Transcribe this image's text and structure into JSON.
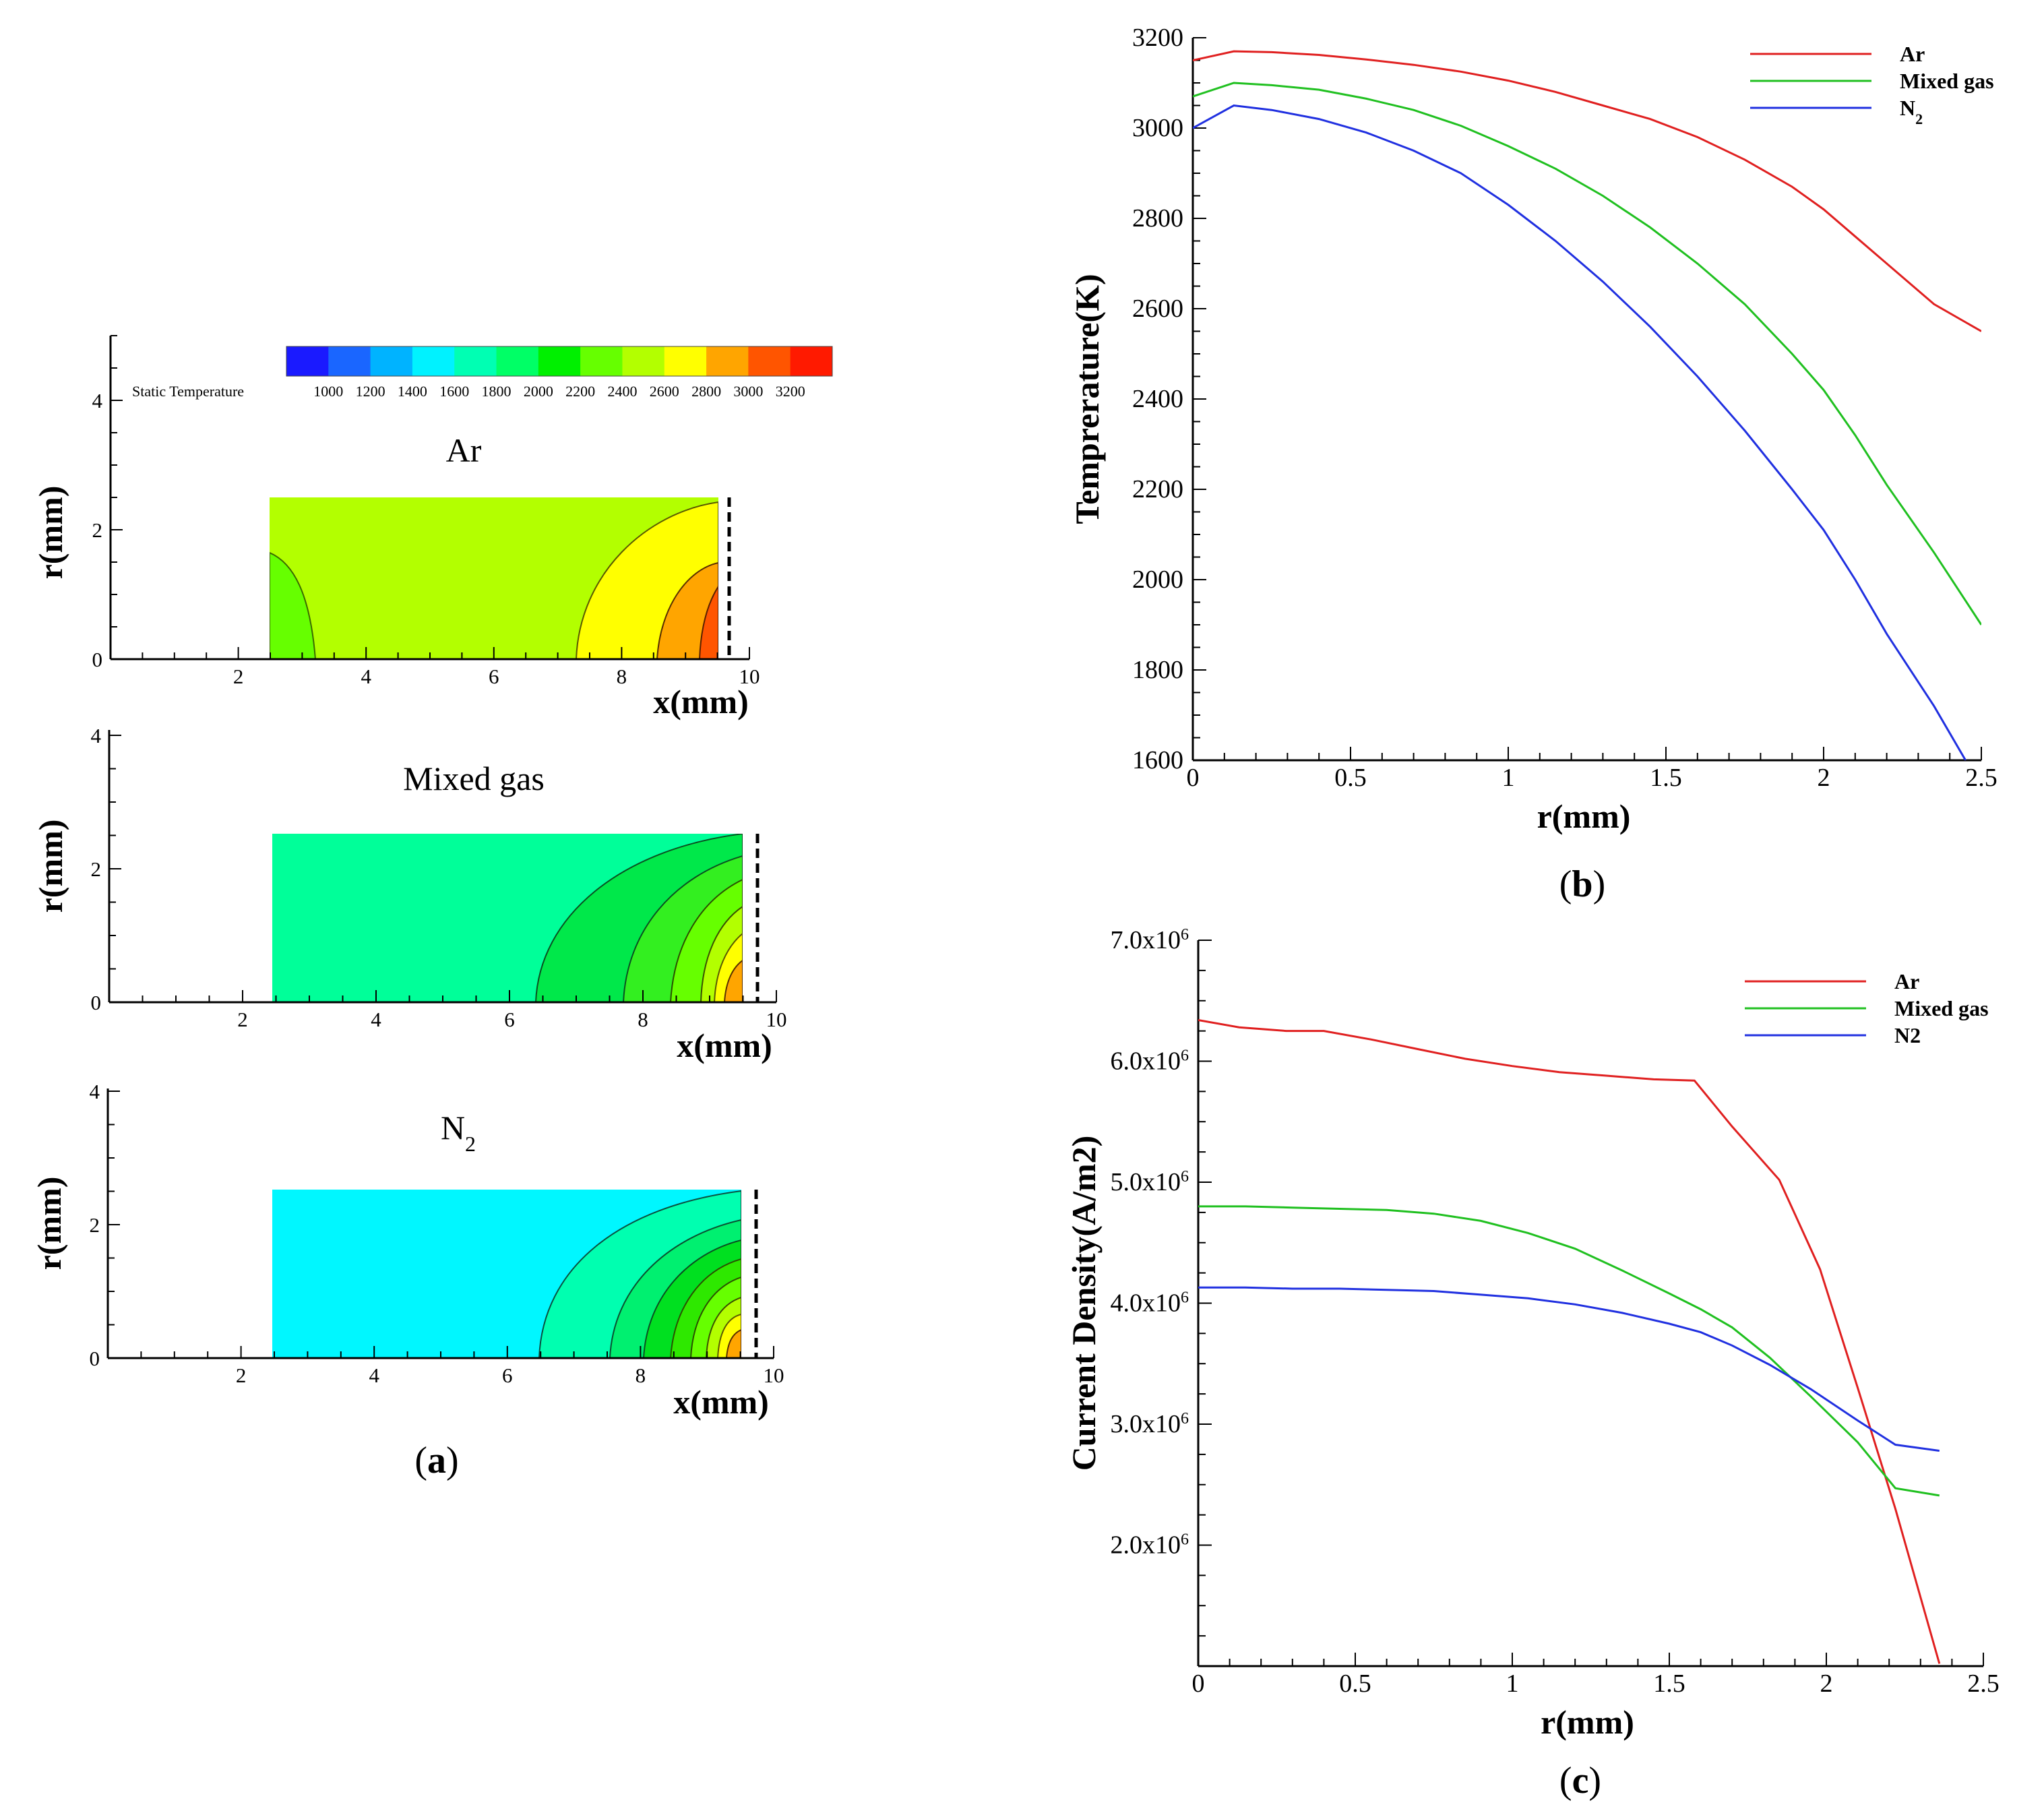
{
  "panel_a": {
    "caption": "a",
    "colorbar": {
      "label": "Static Temperature",
      "ticks": [
        "1000",
        "1200",
        "1400",
        "1600",
        "1800",
        "2000",
        "2200",
        "2400",
        "2600",
        "2800",
        "3000",
        "3200"
      ],
      "colors": [
        "#1a1aff",
        "#1a66ff",
        "#00b3ff",
        "#00f2ff",
        "#00ffb3",
        "#00ff66",
        "#00f000",
        "#66ff00",
        "#b3ff00",
        "#ffff00",
        "#ffa500",
        "#ff5500",
        "#ff1a00"
      ]
    },
    "plots": [
      {
        "title": "Ar",
        "subscript": "",
        "ylabel": "r(mm)",
        "xlabel": "x(mm)",
        "xticks": [
          "2",
          "4",
          "6",
          "8",
          "10"
        ],
        "yticks": [
          "0",
          "2",
          "4"
        ],
        "ylim": [
          0,
          5
        ],
        "xlim": [
          0,
          10
        ],
        "background": "Ar-field"
      },
      {
        "title": "Mixed gas",
        "subscript": "",
        "ylabel": "r(mm)",
        "xlabel": "x(mm)",
        "xticks": [
          "2",
          "4",
          "6",
          "8",
          "10"
        ],
        "yticks": [
          "0",
          "2",
          "4"
        ],
        "ylim": [
          0,
          4.2
        ],
        "xlim": [
          0,
          10
        ],
        "background": "Mixed-field"
      },
      {
        "title": "N",
        "subscript": "2",
        "ylabel": "r(mm)",
        "xlabel": "x(mm)",
        "xticks": [
          "2",
          "4",
          "6",
          "8",
          "10"
        ],
        "yticks": [
          "0",
          "2",
          "4"
        ],
        "ylim": [
          0,
          4.2
        ],
        "xlim": [
          0,
          10
        ],
        "background": "N2-field"
      }
    ]
  },
  "chart_data": [
    {
      "panel": "b",
      "type": "line",
      "title": "",
      "xlabel": "r(mm)",
      "ylabel": "Temprerature(K)",
      "xlim": [
        0,
        2.5
      ],
      "ylim": [
        1600,
        3200
      ],
      "xticks": [
        "0",
        "0.5",
        "1",
        "1.5",
        "2",
        "2.5"
      ],
      "yticks": [
        "1600",
        "1800",
        "2000",
        "2200",
        "2400",
        "2600",
        "2800",
        "3000",
        "3200"
      ],
      "legend_position": "top-right",
      "series": [
        {
          "name": "Ar",
          "subscript": "",
          "color": "#e02020",
          "x": [
            0,
            0.13,
            0.25,
            0.4,
            0.55,
            0.7,
            0.85,
            1.0,
            1.15,
            1.3,
            1.45,
            1.6,
            1.75,
            1.9,
            2.0,
            2.1,
            2.2,
            2.35,
            2.5
          ],
          "y": [
            3150,
            3170,
            3168,
            3162,
            3152,
            3140,
            3125,
            3105,
            3080,
            3050,
            3020,
            2980,
            2930,
            2870,
            2820,
            2760,
            2700,
            2610,
            2550
          ]
        },
        {
          "name": "Mixed gas",
          "subscript": "",
          "color": "#20c020",
          "x": [
            0,
            0.13,
            0.25,
            0.4,
            0.55,
            0.7,
            0.85,
            1.0,
            1.15,
            1.3,
            1.45,
            1.6,
            1.75,
            1.9,
            2.0,
            2.1,
            2.2,
            2.35,
            2.5
          ],
          "y": [
            3070,
            3100,
            3095,
            3085,
            3065,
            3040,
            3005,
            2960,
            2910,
            2850,
            2780,
            2700,
            2610,
            2500,
            2420,
            2320,
            2210,
            2060,
            1900
          ]
        },
        {
          "name": "N",
          "subscript": "2",
          "color": "#2030e0",
          "x": [
            0,
            0.13,
            0.25,
            0.4,
            0.55,
            0.7,
            0.85,
            1.0,
            1.15,
            1.3,
            1.45,
            1.6,
            1.75,
            1.9,
            2.0,
            2.1,
            2.2,
            2.35,
            2.45
          ],
          "y": [
            3000,
            3050,
            3040,
            3020,
            2990,
            2950,
            2900,
            2830,
            2750,
            2660,
            2560,
            2450,
            2330,
            2200,
            2110,
            2000,
            1880,
            1720,
            1600
          ]
        }
      ]
    },
    {
      "panel": "c",
      "type": "line",
      "title": "",
      "xlabel": "r(mm)",
      "ylabel": "Current Density(A/m2)",
      "xlim": [
        0,
        2.5
      ],
      "ylim": [
        1000000,
        7000000
      ],
      "xticks": [
        "0",
        "0.5",
        "1",
        "1.5",
        "2",
        "2.5"
      ],
      "yticks": [
        {
          "value": 2000000,
          "mant": "2.0x10",
          "exp": "6"
        },
        {
          "value": 3000000,
          "mant": "3.0x10",
          "exp": "6"
        },
        {
          "value": 4000000,
          "mant": "4.0x10",
          "exp": "6"
        },
        {
          "value": 5000000,
          "mant": "5.0x10",
          "exp": "6"
        },
        {
          "value": 6000000,
          "mant": "6.0x10",
          "exp": "6"
        },
        {
          "value": 7000000,
          "mant": "7.0x10",
          "exp": "6"
        }
      ],
      "legend_position": "top-right",
      "series": [
        {
          "name": "Ar",
          "subscript": "",
          "color": "#e02020",
          "x": [
            0,
            0.13,
            0.28,
            0.4,
            0.55,
            0.7,
            0.85,
            1.0,
            1.15,
            1.3,
            1.45,
            1.58,
            1.7,
            1.85,
            1.98,
            2.1,
            2.22,
            2.36
          ],
          "y": [
            6340000,
            6280000,
            6250000,
            6250000,
            6180000,
            6100000,
            6020000,
            5960000,
            5910000,
            5880000,
            5850000,
            5840000,
            5460000,
            5020000,
            4280000,
            3300000,
            2300000,
            1020000
          ]
        },
        {
          "name": "Mixed gas",
          "subscript": "",
          "color": "#20c020",
          "x": [
            0,
            0.15,
            0.3,
            0.45,
            0.6,
            0.75,
            0.9,
            1.05,
            1.2,
            1.35,
            1.5,
            1.6,
            1.7,
            1.82,
            1.95,
            2.1,
            2.22,
            2.36
          ],
          "y": [
            4800000,
            4800000,
            4790000,
            4780000,
            4770000,
            4740000,
            4680000,
            4580000,
            4450000,
            4270000,
            4080000,
            3950000,
            3800000,
            3550000,
            3230000,
            2850000,
            2470000,
            2410000
          ]
        },
        {
          "name": "N2",
          "subscript": "",
          "color": "#2030e0",
          "x": [
            0,
            0.15,
            0.3,
            0.45,
            0.6,
            0.75,
            0.9,
            1.05,
            1.2,
            1.35,
            1.5,
            1.6,
            1.7,
            1.82,
            1.95,
            2.1,
            2.22,
            2.36
          ],
          "y": [
            4130000,
            4130000,
            4120000,
            4120000,
            4110000,
            4100000,
            4070000,
            4040000,
            3990000,
            3920000,
            3830000,
            3760000,
            3650000,
            3490000,
            3290000,
            3030000,
            2830000,
            2780000
          ]
        }
      ]
    }
  ],
  "captions": {
    "b": "b",
    "c": "c"
  }
}
